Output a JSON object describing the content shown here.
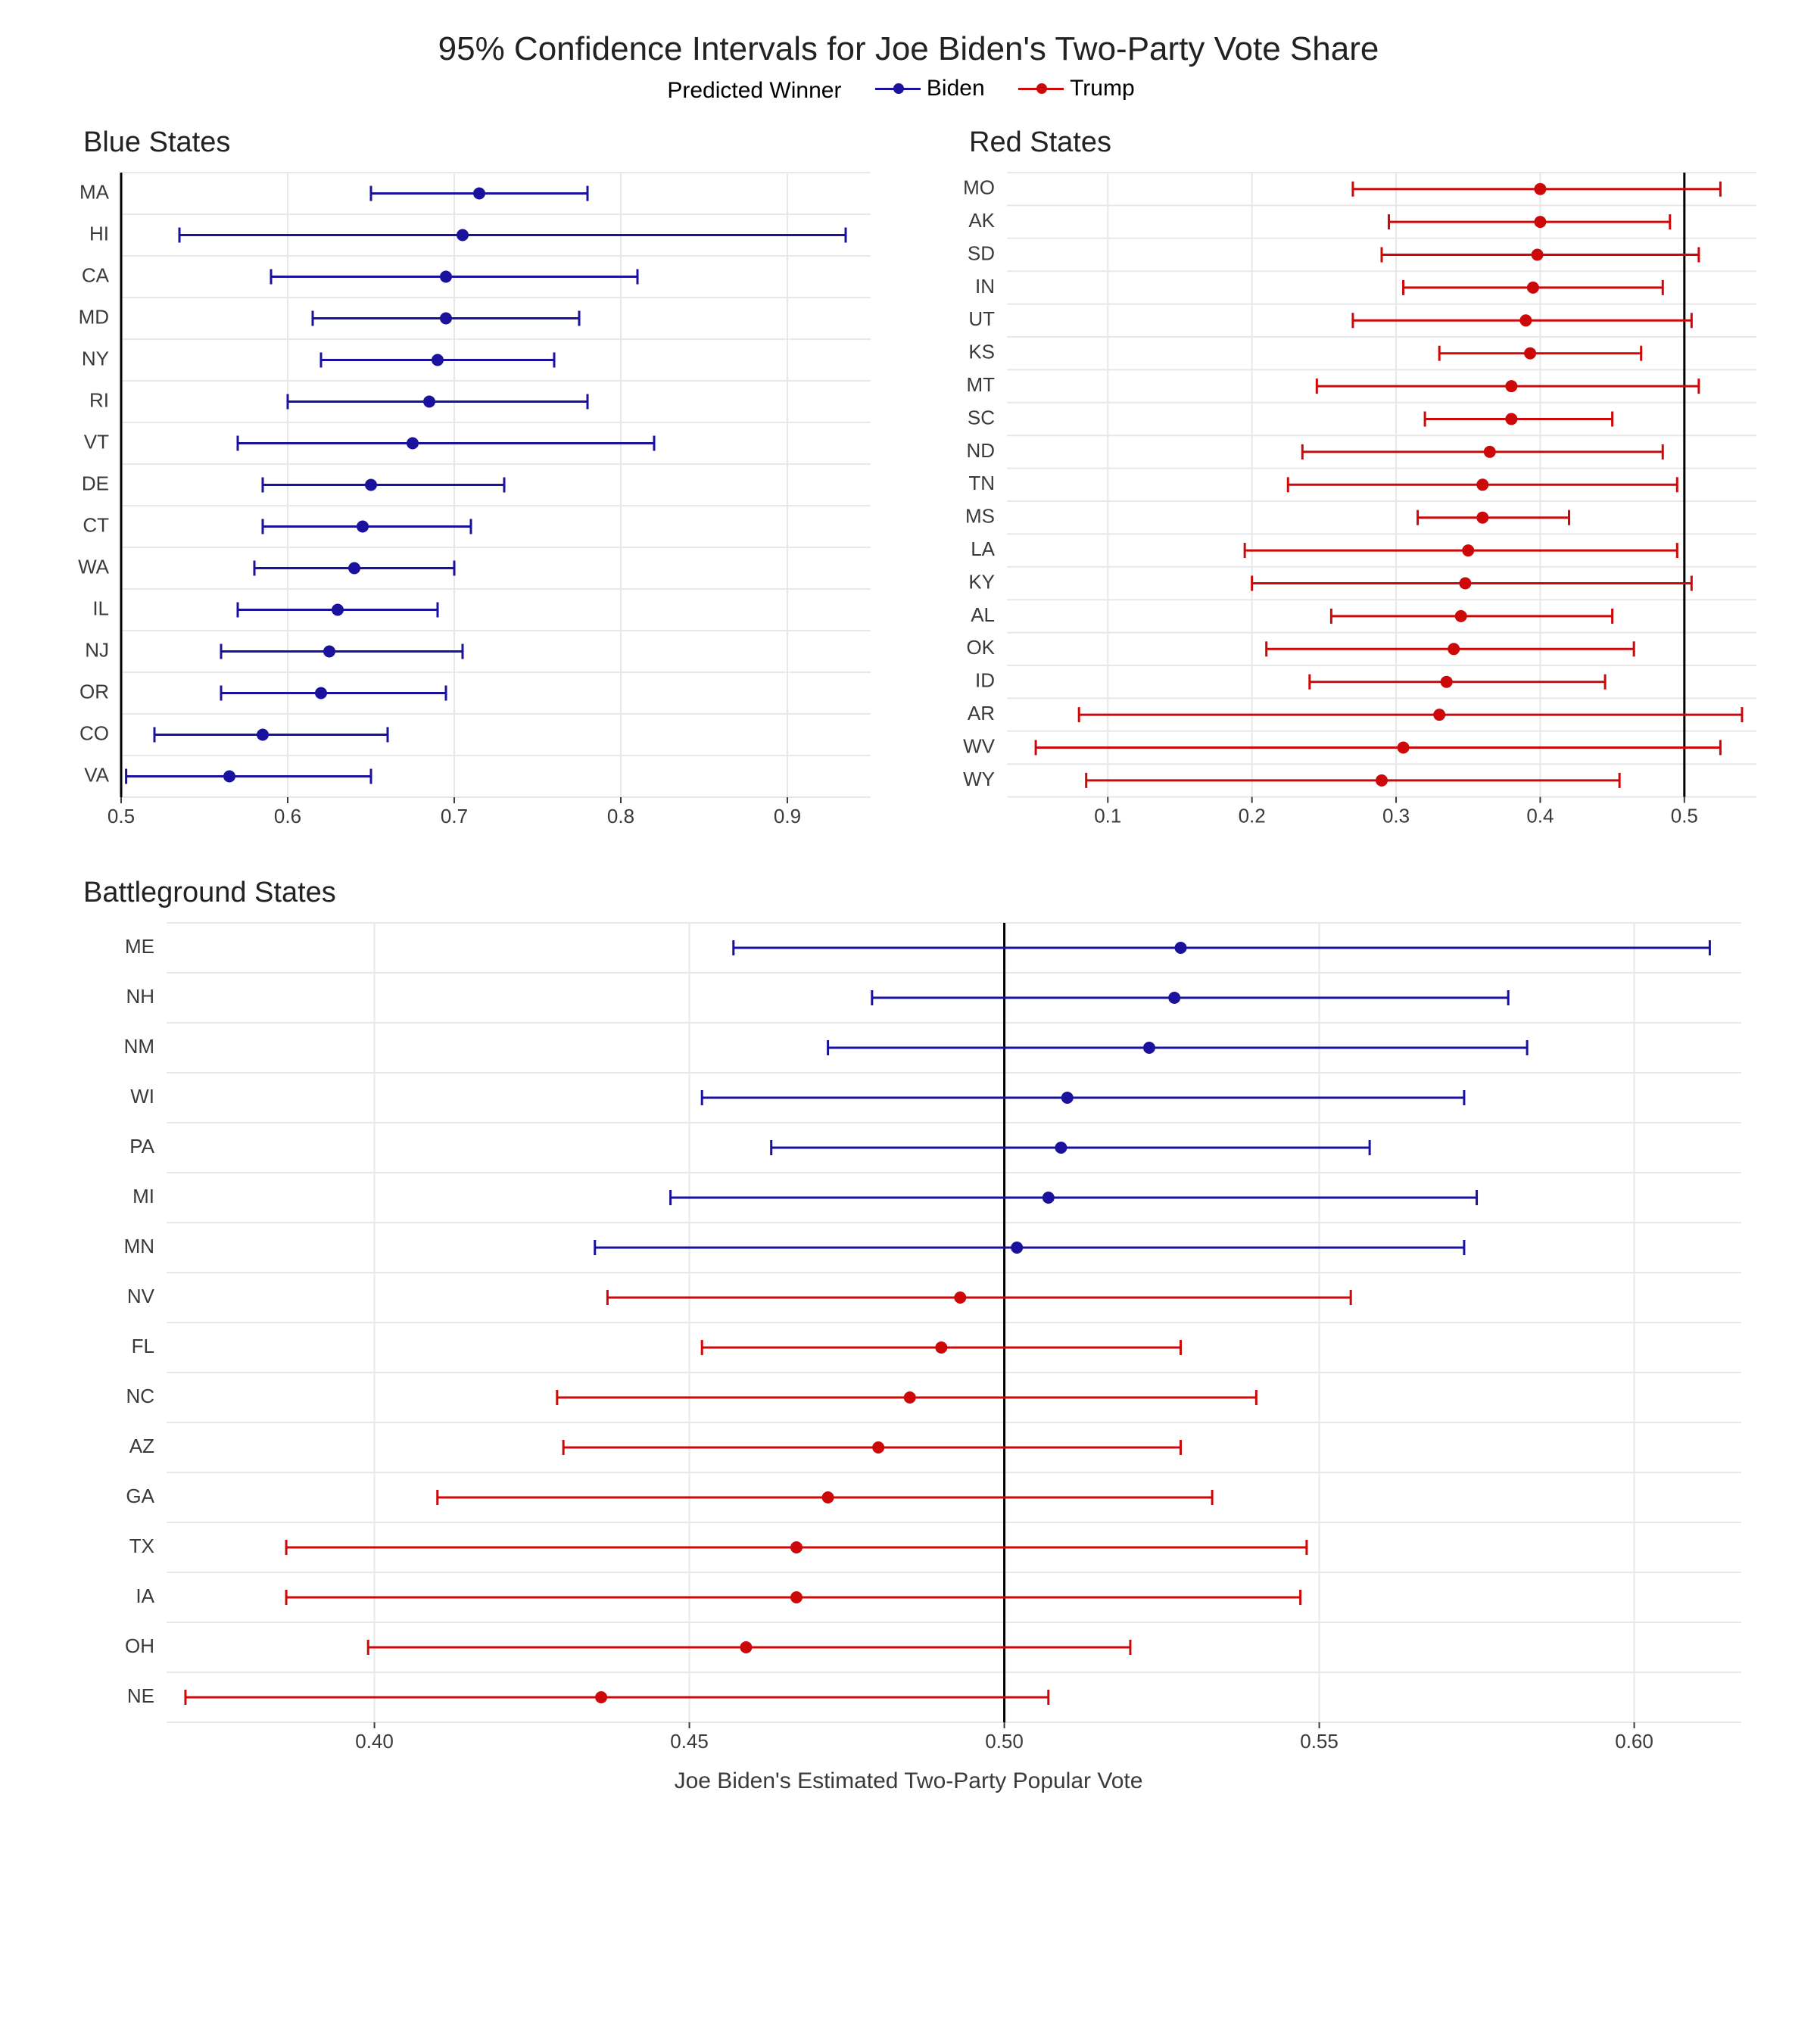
{
  "title": "95% Confidence Intervals for Joe Biden's Two-Party Vote Share",
  "title_fontsize": 44,
  "legend": {
    "label": "Predicted Winner",
    "biden": "Biden",
    "trump": "Trump",
    "fontsize": 30
  },
  "colors": {
    "biden": "#1a129c",
    "trump": "#cc0808",
    "grid": "#e8e8e8",
    "panel_border": "#cccccc",
    "panel_bg": "#ffffff",
    "axis_text": "#3a3a3a",
    "vline": "#000000"
  },
  "style": {
    "marker_radius": 8,
    "line_width": 3,
    "cap_half": 10,
    "panel_title_fontsize": 38,
    "tick_fontsize": 26,
    "axis_label_fontsize": 30
  },
  "axis_label_bottom": "Joe Biden's Estimated Two-Party Popular Vote",
  "panels": {
    "blue": {
      "title": "Blue States",
      "xlim": [
        0.5,
        0.95
      ],
      "xticks": [
        0.5,
        0.6,
        0.7,
        0.8,
        0.9
      ],
      "vline": 0.5,
      "rows": [
        {
          "state": "MA",
          "lo": 0.65,
          "pt": 0.715,
          "hi": 0.78,
          "winner": "biden"
        },
        {
          "state": "HI",
          "lo": 0.535,
          "pt": 0.705,
          "hi": 0.935,
          "winner": "biden"
        },
        {
          "state": "CA",
          "lo": 0.59,
          "pt": 0.695,
          "hi": 0.81,
          "winner": "biden"
        },
        {
          "state": "MD",
          "lo": 0.615,
          "pt": 0.695,
          "hi": 0.775,
          "winner": "biden"
        },
        {
          "state": "NY",
          "lo": 0.62,
          "pt": 0.69,
          "hi": 0.76,
          "winner": "biden"
        },
        {
          "state": "RI",
          "lo": 0.6,
          "pt": 0.685,
          "hi": 0.78,
          "winner": "biden"
        },
        {
          "state": "VT",
          "lo": 0.57,
          "pt": 0.675,
          "hi": 0.82,
          "winner": "biden"
        },
        {
          "state": "DE",
          "lo": 0.585,
          "pt": 0.65,
          "hi": 0.73,
          "winner": "biden"
        },
        {
          "state": "CT",
          "lo": 0.585,
          "pt": 0.645,
          "hi": 0.71,
          "winner": "biden"
        },
        {
          "state": "WA",
          "lo": 0.58,
          "pt": 0.64,
          "hi": 0.7,
          "winner": "biden"
        },
        {
          "state": "IL",
          "lo": 0.57,
          "pt": 0.63,
          "hi": 0.69,
          "winner": "biden"
        },
        {
          "state": "NJ",
          "lo": 0.56,
          "pt": 0.625,
          "hi": 0.705,
          "winner": "biden"
        },
        {
          "state": "OR",
          "lo": 0.56,
          "pt": 0.62,
          "hi": 0.695,
          "winner": "biden"
        },
        {
          "state": "CO",
          "lo": 0.52,
          "pt": 0.585,
          "hi": 0.66,
          "winner": "biden"
        },
        {
          "state": "VA",
          "lo": 0.503,
          "pt": 0.565,
          "hi": 0.65,
          "winner": "biden"
        }
      ]
    },
    "red": {
      "title": "Red States",
      "xlim": [
        0.03,
        0.55
      ],
      "xticks": [
        0.1,
        0.2,
        0.3,
        0.4,
        0.5
      ],
      "vline": 0.5,
      "rows": [
        {
          "state": "MO",
          "lo": 0.27,
          "pt": 0.4,
          "hi": 0.525,
          "winner": "trump"
        },
        {
          "state": "AK",
          "lo": 0.295,
          "pt": 0.4,
          "hi": 0.49,
          "winner": "trump"
        },
        {
          "state": "SD",
          "lo": 0.29,
          "pt": 0.398,
          "hi": 0.51,
          "winner": "trump"
        },
        {
          "state": "IN",
          "lo": 0.305,
          "pt": 0.395,
          "hi": 0.485,
          "winner": "trump"
        },
        {
          "state": "UT",
          "lo": 0.27,
          "pt": 0.39,
          "hi": 0.505,
          "winner": "trump"
        },
        {
          "state": "KS",
          "lo": 0.33,
          "pt": 0.393,
          "hi": 0.47,
          "winner": "trump"
        },
        {
          "state": "MT",
          "lo": 0.245,
          "pt": 0.38,
          "hi": 0.51,
          "winner": "trump"
        },
        {
          "state": "SC",
          "lo": 0.32,
          "pt": 0.38,
          "hi": 0.45,
          "winner": "trump"
        },
        {
          "state": "ND",
          "lo": 0.235,
          "pt": 0.365,
          "hi": 0.485,
          "winner": "trump"
        },
        {
          "state": "TN",
          "lo": 0.225,
          "pt": 0.36,
          "hi": 0.495,
          "winner": "trump"
        },
        {
          "state": "MS",
          "lo": 0.315,
          "pt": 0.36,
          "hi": 0.42,
          "winner": "trump"
        },
        {
          "state": "LA",
          "lo": 0.195,
          "pt": 0.35,
          "hi": 0.495,
          "winner": "trump"
        },
        {
          "state": "KY",
          "lo": 0.2,
          "pt": 0.348,
          "hi": 0.505,
          "winner": "trump"
        },
        {
          "state": "AL",
          "lo": 0.255,
          "pt": 0.345,
          "hi": 0.45,
          "winner": "trump"
        },
        {
          "state": "OK",
          "lo": 0.21,
          "pt": 0.34,
          "hi": 0.465,
          "winner": "trump"
        },
        {
          "state": "ID",
          "lo": 0.24,
          "pt": 0.335,
          "hi": 0.445,
          "winner": "trump"
        },
        {
          "state": "AR",
          "lo": 0.08,
          "pt": 0.33,
          "hi": 0.54,
          "winner": "trump"
        },
        {
          "state": "WV",
          "lo": 0.05,
          "pt": 0.305,
          "hi": 0.525,
          "winner": "trump"
        },
        {
          "state": "WY",
          "lo": 0.085,
          "pt": 0.29,
          "hi": 0.455,
          "winner": "trump"
        }
      ]
    },
    "battleground": {
      "title": "Battleground States",
      "xlim": [
        0.367,
        0.617
      ],
      "xticks": [
        0.4,
        0.45,
        0.5,
        0.55,
        0.6
      ],
      "vline": 0.5,
      "rows": [
        {
          "state": "ME",
          "lo": 0.457,
          "pt": 0.528,
          "hi": 0.612,
          "winner": "biden"
        },
        {
          "state": "NH",
          "lo": 0.479,
          "pt": 0.527,
          "hi": 0.58,
          "winner": "biden"
        },
        {
          "state": "NM",
          "lo": 0.472,
          "pt": 0.523,
          "hi": 0.583,
          "winner": "biden"
        },
        {
          "state": "WI",
          "lo": 0.452,
          "pt": 0.51,
          "hi": 0.573,
          "winner": "biden"
        },
        {
          "state": "PA",
          "lo": 0.463,
          "pt": 0.509,
          "hi": 0.558,
          "winner": "biden"
        },
        {
          "state": "MI",
          "lo": 0.447,
          "pt": 0.507,
          "hi": 0.575,
          "winner": "biden"
        },
        {
          "state": "MN",
          "lo": 0.435,
          "pt": 0.502,
          "hi": 0.573,
          "winner": "biden"
        },
        {
          "state": "NV",
          "lo": 0.437,
          "pt": 0.493,
          "hi": 0.555,
          "winner": "trump"
        },
        {
          "state": "FL",
          "lo": 0.452,
          "pt": 0.49,
          "hi": 0.528,
          "winner": "trump"
        },
        {
          "state": "NC",
          "lo": 0.429,
          "pt": 0.485,
          "hi": 0.54,
          "winner": "trump"
        },
        {
          "state": "AZ",
          "lo": 0.43,
          "pt": 0.48,
          "hi": 0.528,
          "winner": "trump"
        },
        {
          "state": "GA",
          "lo": 0.41,
          "pt": 0.472,
          "hi": 0.533,
          "winner": "trump"
        },
        {
          "state": "TX",
          "lo": 0.386,
          "pt": 0.467,
          "hi": 0.548,
          "winner": "trump"
        },
        {
          "state": "IA",
          "lo": 0.386,
          "pt": 0.467,
          "hi": 0.547,
          "winner": "trump"
        },
        {
          "state": "OH",
          "lo": 0.399,
          "pt": 0.459,
          "hi": 0.52,
          "winner": "trump"
        },
        {
          "state": "NE",
          "lo": 0.37,
          "pt": 0.436,
          "hi": 0.507,
          "winner": "trump"
        }
      ]
    }
  }
}
